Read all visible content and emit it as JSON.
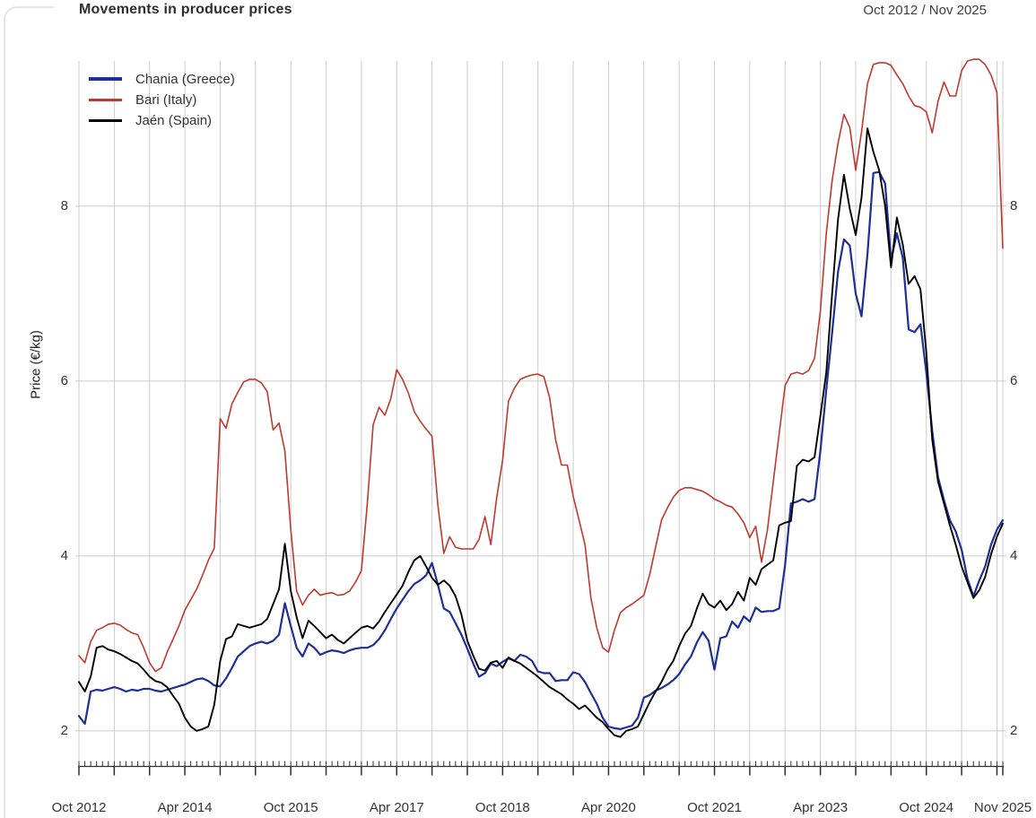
{
  "header": {
    "title": "Movements in producer prices",
    "range": "Oct 2012 / Nov 2025"
  },
  "colors": {
    "grid": "#cbcbcb",
    "axis": "#2f2f2f",
    "text": "#333333",
    "card_border": "#dedede",
    "chania_blue": "#1e2f97",
    "bari_red": "#bf392e",
    "jaen_black": "#000000"
  },
  "chart_data": {
    "type": "line",
    "title": "Movements in producer prices",
    "subtitle": "Oct 2012 / Nov 2025",
    "xlabel": "",
    "ylabel": "Price (€/kg)",
    "ylim": [
      1.66,
      9.66
    ],
    "yticks": [
      2,
      4,
      6,
      8
    ],
    "x_unit": "month",
    "months_total": 158,
    "x_start": "Oct 2012",
    "x_end": "Nov 2025",
    "grid": {
      "vertical_every_months": 6,
      "horizontal_at": [
        2,
        4,
        6,
        8
      ],
      "on": true
    },
    "legend_position": "top-left-inside",
    "xtick_labels": [
      {
        "label": "Oct 2012",
        "month": 0
      },
      {
        "label": "Apr 2014",
        "month": 18
      },
      {
        "label": "Oct 2015",
        "month": 36
      },
      {
        "label": "Apr 2017",
        "month": 54
      },
      {
        "label": "Oct 2018",
        "month": 72
      },
      {
        "label": "Apr 2020",
        "month": 90
      },
      {
        "label": "Oct 2021",
        "month": 108
      },
      {
        "label": "Apr 2023",
        "month": 126
      },
      {
        "label": "Oct 2024",
        "month": 144
      },
      {
        "label": "Nov 2025",
        "month": 157
      }
    ],
    "series": [
      {
        "name": "Chania (Greece)",
        "color": "#1e2f97",
        "values": [
          2.17,
          2.08,
          2.45,
          2.47,
          2.46,
          2.48,
          2.5,
          2.48,
          2.45,
          2.47,
          2.46,
          2.48,
          2.48,
          2.46,
          2.45,
          2.47,
          2.49,
          2.51,
          2.53,
          2.56,
          2.59,
          2.6,
          2.57,
          2.52,
          2.51,
          2.6,
          2.72,
          2.85,
          2.91,
          2.97,
          3.0,
          3.02,
          3.0,
          3.03,
          3.1,
          3.46,
          3.2,
          2.95,
          2.85,
          3.0,
          2.95,
          2.87,
          2.9,
          2.92,
          2.91,
          2.89,
          2.92,
          2.94,
          2.95,
          2.95,
          2.98,
          3.05,
          3.15,
          3.28,
          3.4,
          3.5,
          3.6,
          3.68,
          3.72,
          3.78,
          3.92,
          3.67,
          3.4,
          3.36,
          3.23,
          3.1,
          2.94,
          2.77,
          2.62,
          2.66,
          2.77,
          2.74,
          2.79,
          2.83,
          2.8,
          2.87,
          2.85,
          2.8,
          2.68,
          2.66,
          2.66,
          2.57,
          2.58,
          2.58,
          2.67,
          2.65,
          2.56,
          2.43,
          2.31,
          2.15,
          2.05,
          2.03,
          2.02,
          2.04,
          2.06,
          2.15,
          2.38,
          2.41,
          2.46,
          2.49,
          2.53,
          2.58,
          2.65,
          2.76,
          2.85,
          3.01,
          3.13,
          3.03,
          2.7,
          3.06,
          3.08,
          3.25,
          3.18,
          3.31,
          3.25,
          3.41,
          3.36,
          3.37,
          3.37,
          3.4,
          3.9,
          4.6,
          4.62,
          4.65,
          4.62,
          4.65,
          5.2,
          5.9,
          6.55,
          7.25,
          7.62,
          7.55,
          7.0,
          6.74,
          7.45,
          8.38,
          8.39,
          8.26,
          7.38,
          7.69,
          7.41,
          6.59,
          6.56,
          6.65,
          6.1,
          5.43,
          4.9,
          4.64,
          4.41,
          4.28,
          4.07,
          3.74,
          3.54,
          3.72,
          3.88,
          4.13,
          4.3,
          4.41
        ]
      },
      {
        "name": "Bari (Italy)",
        "color": "#bf392e",
        "values": [
          2.86,
          2.78,
          3.02,
          3.15,
          3.18,
          3.22,
          3.23,
          3.21,
          3.16,
          3.12,
          3.1,
          2.95,
          2.78,
          2.68,
          2.72,
          2.9,
          3.05,
          3.2,
          3.38,
          3.5,
          3.62,
          3.78,
          3.95,
          4.09,
          5.57,
          5.46,
          5.74,
          5.87,
          5.99,
          6.02,
          6.02,
          5.98,
          5.88,
          5.44,
          5.52,
          5.2,
          4.3,
          3.6,
          3.44,
          3.55,
          3.62,
          3.55,
          3.57,
          3.58,
          3.55,
          3.56,
          3.6,
          3.7,
          3.83,
          4.6,
          5.5,
          5.7,
          5.61,
          5.8,
          6.13,
          6.02,
          5.86,
          5.65,
          5.54,
          5.45,
          5.37,
          4.58,
          4.03,
          4.22,
          4.1,
          4.08,
          4.08,
          4.08,
          4.19,
          4.45,
          4.13,
          4.67,
          5.1,
          5.77,
          5.92,
          6.02,
          6.05,
          6.07,
          6.08,
          6.05,
          5.81,
          5.33,
          5.04,
          5.04,
          4.68,
          4.41,
          4.13,
          3.52,
          3.18,
          2.95,
          2.9,
          3.15,
          3.35,
          3.41,
          3.45,
          3.5,
          3.55,
          3.79,
          4.1,
          4.41,
          4.55,
          4.67,
          4.75,
          4.78,
          4.78,
          4.76,
          4.74,
          4.7,
          4.65,
          4.62,
          4.58,
          4.56,
          4.48,
          4.38,
          4.21,
          4.34,
          3.93,
          4.3,
          4.85,
          5.4,
          5.95,
          6.08,
          6.1,
          6.08,
          6.12,
          6.26,
          6.8,
          7.69,
          8.29,
          8.72,
          9.05,
          8.9,
          8.41,
          8.85,
          9.4,
          9.62,
          9.64,
          9.64,
          9.61,
          9.5,
          9.4,
          9.26,
          9.15,
          9.13,
          9.08,
          8.84,
          9.2,
          9.42,
          9.26,
          9.26,
          9.55,
          9.66,
          9.68,
          9.68,
          9.62,
          9.5,
          9.3,
          7.52
        ]
      },
      {
        "name": "Jaén (Spain)",
        "color": "#000000",
        "values": [
          2.56,
          2.45,
          2.62,
          2.95,
          2.97,
          2.93,
          2.91,
          2.88,
          2.84,
          2.8,
          2.77,
          2.7,
          2.62,
          2.57,
          2.55,
          2.5,
          2.4,
          2.31,
          2.15,
          2.05,
          2.0,
          2.02,
          2.05,
          2.3,
          2.8,
          3.05,
          3.08,
          3.22,
          3.2,
          3.18,
          3.2,
          3.22,
          3.28,
          3.45,
          3.62,
          4.14,
          3.6,
          3.3,
          3.06,
          3.26,
          3.2,
          3.13,
          3.06,
          3.1,
          3.04,
          3.0,
          3.06,
          3.12,
          3.18,
          3.2,
          3.17,
          3.25,
          3.36,
          3.46,
          3.56,
          3.66,
          3.82,
          3.95,
          4.0,
          3.88,
          3.75,
          3.67,
          3.72,
          3.66,
          3.54,
          3.33,
          3.03,
          2.86,
          2.71,
          2.69,
          2.78,
          2.8,
          2.72,
          2.84,
          2.8,
          2.77,
          2.72,
          2.67,
          2.62,
          2.56,
          2.5,
          2.46,
          2.42,
          2.36,
          2.31,
          2.25,
          2.29,
          2.22,
          2.15,
          2.1,
          2.02,
          1.95,
          1.93,
          2.0,
          2.02,
          2.05,
          2.19,
          2.33,
          2.45,
          2.56,
          2.7,
          2.8,
          2.97,
          3.11,
          3.2,
          3.4,
          3.57,
          3.45,
          3.41,
          3.49,
          3.38,
          3.45,
          3.59,
          3.49,
          3.75,
          3.67,
          3.85,
          3.9,
          3.95,
          4.35,
          4.38,
          4.4,
          5.03,
          5.1,
          5.08,
          5.13,
          5.6,
          6.1,
          7.0,
          7.85,
          8.36,
          7.97,
          7.67,
          8.1,
          8.89,
          8.62,
          8.41,
          8.0,
          7.3,
          7.87,
          7.56,
          7.11,
          7.2,
          7.05,
          6.33,
          5.33,
          4.85,
          4.6,
          4.35,
          4.13,
          3.88,
          3.7,
          3.52,
          3.61,
          3.76,
          4.02,
          4.22,
          4.37
        ]
      }
    ]
  }
}
